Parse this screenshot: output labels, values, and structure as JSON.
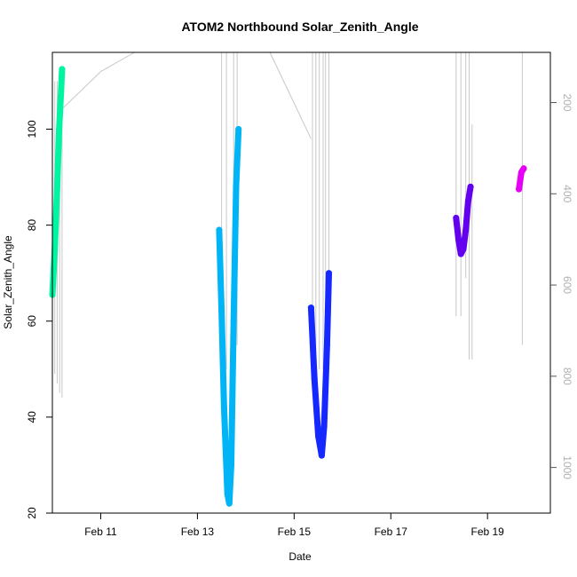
{
  "chart_data": {
    "type": "line",
    "title": "ATOM2 Northbound Solar_Zenith_Angle",
    "xlabel": "Date",
    "ylabel": "Solar_Zenith_Angle",
    "xlim_days": [
      10.0,
      20.3
    ],
    "ylim": [
      20,
      116
    ],
    "x_ticks": [
      {
        "day": 11,
        "label": "Feb 11"
      },
      {
        "day": 13,
        "label": "Feb 13"
      },
      {
        "day": 15,
        "label": "Feb 15"
      },
      {
        "day": 17,
        "label": "Feb 17"
      },
      {
        "day": 19,
        "label": "Feb 19"
      }
    ],
    "y_ticks": [
      20,
      40,
      60,
      80,
      100
    ],
    "y2_ticks": [
      200,
      400,
      600,
      800,
      1000
    ],
    "y2_range": [
      90,
      1100
    ],
    "y2_reversed": true,
    "grid": false,
    "secondary_color": "#c8c8c8",
    "series": [
      {
        "color": "#00f5a0",
        "points": [
          [
            10.0,
            65.5
          ],
          [
            10.05,
            75
          ],
          [
            10.1,
            88
          ],
          [
            10.14,
            100
          ],
          [
            10.18,
            108
          ],
          [
            10.2,
            112.5
          ]
        ]
      },
      {
        "color": "#00b4f5",
        "points": [
          [
            13.45,
            79
          ],
          [
            13.5,
            62
          ],
          [
            13.55,
            42
          ],
          [
            13.62,
            24
          ],
          [
            13.66,
            22
          ],
          [
            13.7,
            30
          ],
          [
            13.75,
            60
          ],
          [
            13.8,
            88
          ],
          [
            13.85,
            100
          ]
        ]
      },
      {
        "color": "#1428ff",
        "points": [
          [
            15.35,
            62.8
          ],
          [
            15.42,
            48
          ],
          [
            15.5,
            36
          ],
          [
            15.57,
            32
          ],
          [
            15.62,
            38
          ],
          [
            15.68,
            55
          ],
          [
            15.72,
            70
          ]
        ]
      },
      {
        "color": "#6400f0",
        "points": [
          [
            18.35,
            81.5
          ],
          [
            18.4,
            77
          ],
          [
            18.45,
            74
          ],
          [
            18.5,
            75
          ],
          [
            18.55,
            79
          ],
          [
            18.6,
            85
          ],
          [
            18.65,
            88
          ]
        ]
      },
      {
        "color": "#e600f5",
        "points": [
          [
            19.65,
            87.5
          ],
          [
            19.7,
            91
          ],
          [
            19.75,
            91.8
          ]
        ]
      }
    ],
    "secondary_lines": [
      [
        [
          10.05,
          110
        ],
        [
          10.05,
          49
        ]
      ],
      [
        [
          10.1,
          110
        ],
        [
          10.1,
          47
        ]
      ],
      [
        [
          10.15,
          110
        ],
        [
          10.15,
          45
        ]
      ],
      [
        [
          10.2,
          110
        ],
        [
          10.2,
          44
        ]
      ],
      [
        [
          10.18,
          104
        ],
        [
          11.0,
          112
        ]
      ],
      [
        [
          11.0,
          112
        ],
        [
          11.7,
          116
        ]
      ],
      [
        [
          13.5,
          116
        ],
        [
          13.5,
          45
        ]
      ],
      [
        [
          13.6,
          116
        ],
        [
          13.6,
          50
        ]
      ],
      [
        [
          13.75,
          116
        ],
        [
          13.75,
          45
        ]
      ],
      [
        [
          13.82,
          116
        ],
        [
          13.82,
          55
        ]
      ],
      [
        [
          14.5,
          116
        ],
        [
          15.35,
          98
        ]
      ],
      [
        [
          15.38,
          116
        ],
        [
          15.38,
          50
        ]
      ],
      [
        [
          15.45,
          116
        ],
        [
          15.45,
          52
        ]
      ],
      [
        [
          15.52,
          116
        ],
        [
          15.52,
          50
        ]
      ],
      [
        [
          15.6,
          116
        ],
        [
          15.6,
          50
        ]
      ],
      [
        [
          15.65,
          116
        ],
        [
          15.65,
          55
        ]
      ],
      [
        [
          15.72,
          116
        ],
        [
          15.72,
          58
        ]
      ],
      [
        [
          18.35,
          116
        ],
        [
          18.35,
          61
        ]
      ],
      [
        [
          18.45,
          116
        ],
        [
          18.45,
          61
        ]
      ],
      [
        [
          18.55,
          116
        ],
        [
          18.55,
          69
        ]
      ],
      [
        [
          18.62,
          116
        ],
        [
          18.62,
          52
        ]
      ],
      [
        [
          18.68,
          101
        ],
        [
          18.68,
          52
        ]
      ],
      [
        [
          19.72,
          116
        ],
        [
          19.72,
          55
        ]
      ]
    ]
  }
}
